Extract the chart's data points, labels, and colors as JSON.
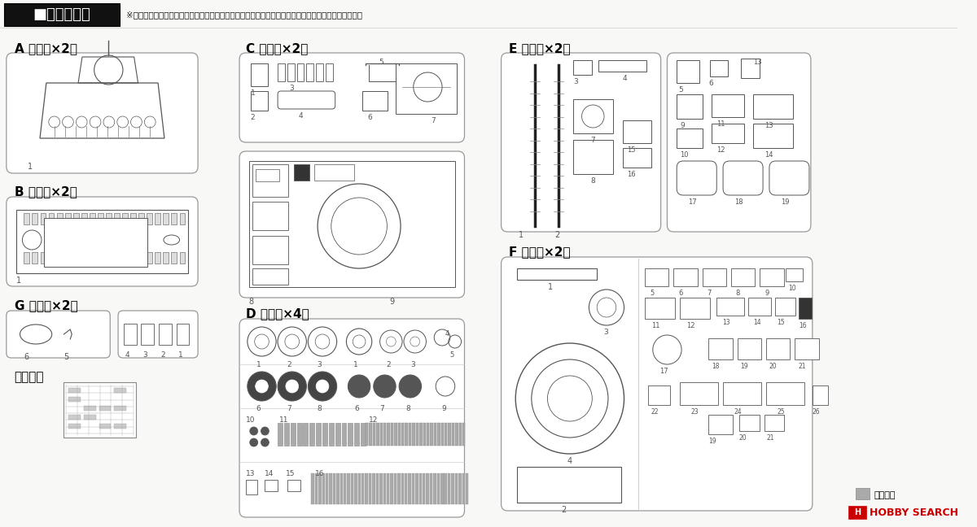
{
  "bg_color": "#f8f8f6",
  "line_color": "#555555",
  "dark_color": "#222222",
  "title_text": "■キット内容",
  "subtitle": "※キット内容を必すお確かめください。万一、欠品や不良等ございましたら当社までご連絡ください。",
  "label_A": "A 部品（×2）",
  "label_B": "B 部品（×2）",
  "label_G": "G 部品（×2）",
  "label_decal": "デカール",
  "label_C": "C 部品（×2）",
  "label_D": "D 部品（×4）",
  "label_E": "E 部品（×2）",
  "label_F": "F 部品（×2）",
  "footer_fuyo": "不要部品",
  "footer_hobby": "HOBBY SEARCH"
}
